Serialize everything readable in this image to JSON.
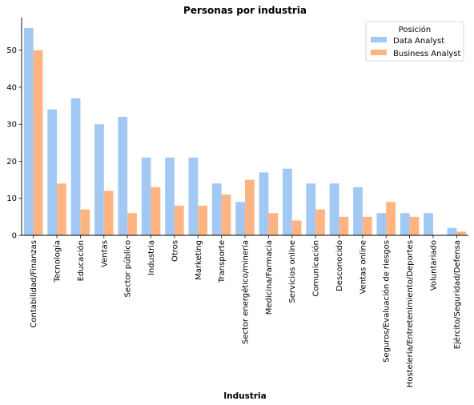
{
  "chart_data": {
    "type": "bar",
    "title": "Personas por industria",
    "xlabel": "Industria",
    "ylabel": "",
    "ylim": [
      0,
      58.8
    ],
    "yticks": [
      0,
      10,
      20,
      30,
      40,
      50
    ],
    "legend": {
      "title": "Posición",
      "placement": "top-right"
    },
    "categories": [
      "Contabilidad/Finanzas",
      "Tecnología",
      "Educación",
      "Ventas",
      "Sector público",
      "Industria",
      "Otros",
      "Marketing",
      "Transporte",
      "Sector energético/minería",
      "Medicina/Farmacia",
      "Servicios online",
      "Comunicación",
      "Desconocido",
      "Ventas online",
      "Seguros/Evaluación de riesgos",
      "Hostelería/Entretenimiento/Deportes",
      "Voluntariado",
      "Ejército/Seguridad/Defensa"
    ],
    "series": [
      {
        "name": "Data Analyst",
        "color": "#a1c9f4",
        "values": [
          56,
          34,
          37,
          30,
          32,
          21,
          21,
          21,
          14,
          9,
          17,
          18,
          14,
          14,
          13,
          6,
          6,
          6,
          2
        ]
      },
      {
        "name": "Business Analyst",
        "color": "#ffb482",
        "values": [
          50,
          14,
          7,
          12,
          6,
          13,
          8,
          8,
          11,
          15,
          6,
          4,
          7,
          5,
          5,
          9,
          5,
          0,
          1
        ]
      }
    ]
  }
}
